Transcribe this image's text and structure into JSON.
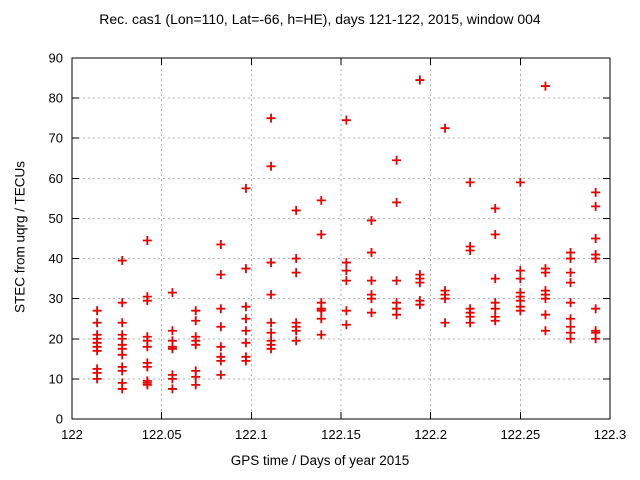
{
  "chart_data": {
    "type": "scatter",
    "title": "Rec. cas1 (Lon=110, Lat=-66, h=HE), days 121-122, 2015, window 004",
    "xlabel": "GPS time / Days of year 2015",
    "ylabel": "STEC from uqrg / TECUs",
    "xlim": [
      122,
      122.3
    ],
    "ylim": [
      0,
      90
    ],
    "xticks": [
      122,
      122.05,
      122.1,
      122.15,
      122.2,
      122.25,
      122.3
    ],
    "xtick_labels": [
      "122",
      "122.05",
      "122.1",
      "122.15",
      "122.2",
      "122.25",
      "122.3"
    ],
    "yticks": [
      0,
      10,
      20,
      30,
      40,
      50,
      60,
      70,
      80,
      90
    ],
    "ytick_labels": [
      "0",
      "10",
      "20",
      "30",
      "40",
      "50",
      "60",
      "70",
      "80",
      "90"
    ],
    "grid": true,
    "legend": "none",
    "marker": "plus",
    "marker_color": "#e60000",
    "grid_color": "#b3b3b3",
    "axis_color": "#000000",
    "background_color": "#ffffff",
    "series": [
      {
        "name": "STEC from uqrg",
        "clusters": [
          {
            "t": 122.014,
            "stec": [
              27,
              24,
              21,
              20,
              19,
              18,
              17,
              12.5,
              11.5,
              10
            ]
          },
          {
            "t": 122.028,
            "stec": [
              39.5,
              29,
              24,
              21,
              20,
              18.5,
              17.5,
              16,
              13,
              12,
              9,
              7.5
            ]
          },
          {
            "t": 122.042,
            "stec": [
              44.5,
              30.5,
              29.5,
              20.5,
              19.5,
              18,
              14,
              13,
              9.5,
              9,
              8.5
            ]
          },
          {
            "t": 122.056,
            "stec": [
              31.5,
              22,
              19.5,
              18,
              17.5,
              11,
              10,
              7.5
            ]
          },
          {
            "t": 122.069,
            "stec": [
              27,
              24.5,
              20.5,
              19.5,
              18.5,
              12,
              10.5,
              8.5
            ]
          },
          {
            "t": 122.083,
            "stec": [
              43.5,
              36,
              27.5,
              23,
              18,
              15.5,
              14.5,
              11
            ]
          },
          {
            "t": 122.097,
            "stec": [
              57.5,
              37.5,
              28,
              25,
              22,
              19,
              15.5,
              14.5
            ]
          },
          {
            "t": 122.111,
            "stec": [
              75,
              63,
              39,
              31,
              24,
              21.5,
              19.5,
              18.5,
              17.5
            ]
          },
          {
            "t": 122.125,
            "stec": [
              52,
              40,
              36.5,
              24,
              23,
              22,
              19.5
            ]
          },
          {
            "t": 122.139,
            "stec": [
              54.5,
              46,
              29,
              27.5,
              27,
              25,
              21
            ]
          },
          {
            "t": 122.153,
            "stec": [
              74.5,
              39,
              37,
              34.5,
              27,
              23.5
            ]
          },
          {
            "t": 122.167,
            "stec": [
              49.5,
              41.5,
              34.5,
              31,
              30,
              26.5
            ]
          },
          {
            "t": 122.181,
            "stec": [
              64.5,
              54,
              34.5,
              29,
              27.5,
              26
            ]
          },
          {
            "t": 122.194,
            "stec": [
              84.5,
              36,
              35,
              34,
              29.5,
              28.5
            ]
          },
          {
            "t": 122.208,
            "stec": [
              72.5,
              32,
              31,
              30,
              24
            ]
          },
          {
            "t": 122.222,
            "stec": [
              59,
              43,
              42,
              27.5,
              26.5,
              25.5,
              24
            ]
          },
          {
            "t": 122.236,
            "stec": [
              52.5,
              46,
              35,
              29,
              27.5,
              25.5,
              24.5
            ]
          },
          {
            "t": 122.25,
            "stec": [
              59,
              37,
              35,
              31.5,
              30.5,
              29.5,
              28,
              27
            ]
          },
          {
            "t": 122.264,
            "stec": [
              83,
              37.5,
              36.5,
              32,
              31,
              30,
              26,
              22
            ]
          },
          {
            "t": 122.278,
            "stec": [
              41.5,
              40,
              36.5,
              34,
              29,
              25,
              23,
              21.5,
              20
            ]
          },
          {
            "t": 122.292,
            "stec": [
              56.5,
              53,
              45,
              41,
              40,
              27.5,
              22,
              21.5,
              20
            ]
          }
        ]
      }
    ]
  }
}
